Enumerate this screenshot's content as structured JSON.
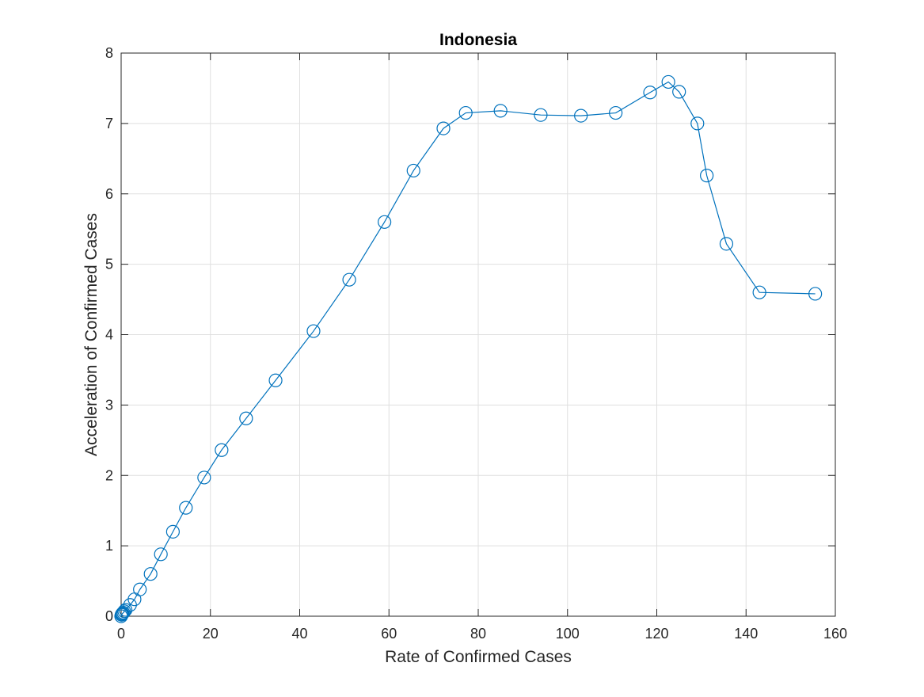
{
  "chart_data": {
    "type": "line",
    "title": "Indonesia",
    "xlabel": "Rate of Confirmed Cases",
    "ylabel": "Acceleration of Confirmed Cases",
    "xlim": [
      0,
      160
    ],
    "ylim": [
      0,
      8
    ],
    "xticks": [
      "0",
      "20",
      "40",
      "60",
      "80",
      "100",
      "120",
      "140",
      "160"
    ],
    "yticks": [
      "0",
      "1",
      "2",
      "3",
      "4",
      "5",
      "6",
      "7",
      "8"
    ],
    "grid": true,
    "marker": "circle",
    "color": "#0072bd",
    "series": [
      {
        "x": [
          0.0,
          0.1,
          0.2,
          0.3,
          0.5,
          0.7,
          1.0,
          2.0,
          3.0,
          4.2,
          6.6,
          8.9,
          11.6,
          14.5,
          18.6,
          22.5,
          28.0,
          34.6,
          43.1,
          51.1,
          59.0,
          65.5,
          72.2,
          77.2,
          85.0,
          94.0,
          103.0,
          110.8,
          118.5,
          122.6,
          125.0,
          129.1,
          131.2,
          135.6,
          143.0,
          155.5
        ],
        "y": [
          0.0,
          0.02,
          0.03,
          0.04,
          0.05,
          0.07,
          0.09,
          0.16,
          0.24,
          0.38,
          0.6,
          0.88,
          1.2,
          1.54,
          1.97,
          2.36,
          2.81,
          3.35,
          4.05,
          4.78,
          5.6,
          6.33,
          6.93,
          7.15,
          7.18,
          7.12,
          7.11,
          7.15,
          7.44,
          7.59,
          7.45,
          7.0,
          6.26,
          5.29,
          4.6,
          4.58
        ]
      }
    ]
  }
}
